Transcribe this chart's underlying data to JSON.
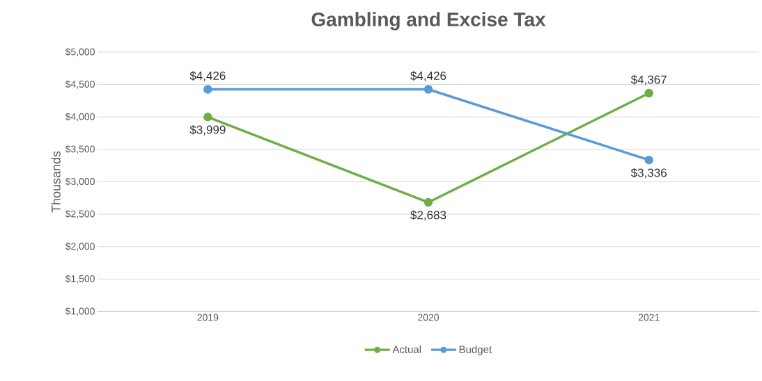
{
  "chart_data": {
    "type": "line",
    "title": "Gambling and Excise Tax",
    "ylabel": "Thousands",
    "categories": [
      "2019",
      "2020",
      "2021"
    ],
    "series": [
      {
        "name": "Actual",
        "color": "#70ad47",
        "values": [
          3999,
          2683,
          4367
        ],
        "value_labels": [
          "$3,999",
          "$2,683",
          "$4,367"
        ]
      },
      {
        "name": "Budget",
        "color": "#5b9bd5",
        "values": [
          4426,
          4426,
          3336
        ],
        "value_labels": [
          "$4,426",
          "$4,426",
          "$3,336"
        ]
      }
    ],
    "ylim": [
      1000,
      5000
    ],
    "yticks": [
      {
        "value": 1000,
        "label": "$1,000"
      },
      {
        "value": 1500,
        "label": "$1,500"
      },
      {
        "value": 2000,
        "label": "$2,000"
      },
      {
        "value": 2500,
        "label": "$2,500"
      },
      {
        "value": 3000,
        "label": "$3,000"
      },
      {
        "value": 3500,
        "label": "$3,500"
      },
      {
        "value": 4000,
        "label": "$4,000"
      },
      {
        "value": 4500,
        "label": "$4,500"
      },
      {
        "value": 5000,
        "label": "$5,000"
      }
    ],
    "grid": "y",
    "legend": "bottom",
    "marker": "circle",
    "line_style": "solid"
  }
}
